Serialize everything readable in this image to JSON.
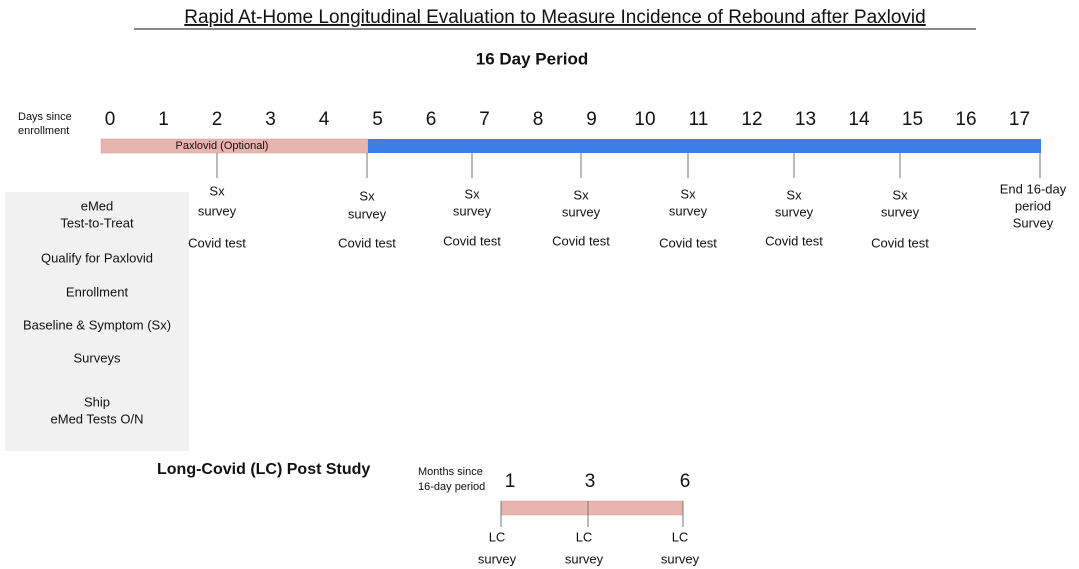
{
  "title": "Rapid At-Home Longitudinal Evaluation to Measure Incidence of Rebound after Paxlovid",
  "period_title": "16 Day Period",
  "days_label": [
    "Days since",
    "enrollment"
  ],
  "days": [
    0,
    1,
    2,
    3,
    4,
    5,
    6,
    7,
    8,
    9,
    10,
    11,
    12,
    13,
    14,
    15,
    16,
    17
  ],
  "paxlovid_label": "Paxlovid (Optional)",
  "events": [
    {
      "survey": [
        "Sx",
        "survey"
      ],
      "test": "Covid test"
    },
    {
      "survey": [
        "Sx",
        "survey"
      ],
      "test": "Covid test"
    },
    {
      "survey": [
        "Sx",
        "survey"
      ],
      "test": "Covid test"
    },
    {
      "survey": [
        "Sx",
        "survey"
      ],
      "test": "Covid test"
    },
    {
      "survey": [
        "Sx",
        "survey"
      ],
      "test": "Covid test"
    },
    {
      "survey": [
        "Sx",
        "survey"
      ],
      "test": "Covid test"
    },
    {
      "survey": [
        "Sx",
        "survey"
      ],
      "test": "Covid test"
    }
  ],
  "end_event": [
    "End 16-day",
    "period",
    "Survey"
  ],
  "enrollment_box": [
    "eMed",
    "Test-to-Treat",
    "Qualify for Paxlovid",
    "Enrollment",
    "Baseline & Symptom (Sx)",
    "Surveys",
    "Ship",
    "eMed Tests O/N"
  ],
  "lc_title": "Long-Covid (LC) Post Study",
  "months_label": [
    "Months since",
    "16-day period"
  ],
  "months": [
    1,
    3,
    6
  ],
  "lc_surveys": [
    [
      "LC",
      "survey"
    ],
    [
      "LC",
      "survey"
    ],
    [
      "LC",
      "survey"
    ]
  ]
}
